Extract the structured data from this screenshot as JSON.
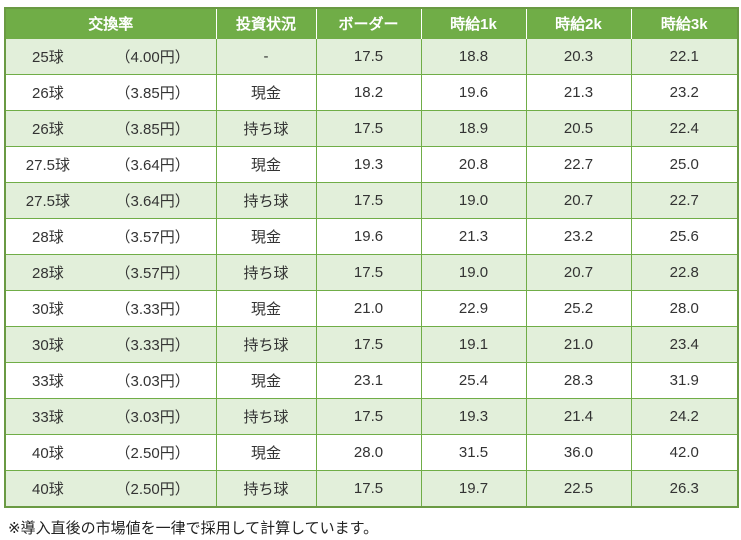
{
  "chart_data": {
    "type": "table",
    "columns": [
      "交換率",
      "投資状況",
      "ボーダー",
      "時給1k",
      "時給2k",
      "時給3k"
    ],
    "rows": [
      {
        "balls": "25球",
        "yen": "（4.00円）",
        "status": "-",
        "border": "17.5",
        "wage1k": "18.8",
        "wage2k": "20.3",
        "wage3k": "22.1"
      },
      {
        "balls": "26球",
        "yen": "（3.85円）",
        "status": "現金",
        "border": "18.2",
        "wage1k": "19.6",
        "wage2k": "21.3",
        "wage3k": "23.2"
      },
      {
        "balls": "26球",
        "yen": "（3.85円）",
        "status": "持ち球",
        "border": "17.5",
        "wage1k": "18.9",
        "wage2k": "20.5",
        "wage3k": "22.4"
      },
      {
        "balls": "27.5球",
        "yen": "（3.64円）",
        "status": "現金",
        "border": "19.3",
        "wage1k": "20.8",
        "wage2k": "22.7",
        "wage3k": "25.0"
      },
      {
        "balls": "27.5球",
        "yen": "（3.64円）",
        "status": "持ち球",
        "border": "17.5",
        "wage1k": "19.0",
        "wage2k": "20.7",
        "wage3k": "22.7"
      },
      {
        "balls": "28球",
        "yen": "（3.57円）",
        "status": "現金",
        "border": "19.6",
        "wage1k": "21.3",
        "wage2k": "23.2",
        "wage3k": "25.6"
      },
      {
        "balls": "28球",
        "yen": "（3.57円）",
        "status": "持ち球",
        "border": "17.5",
        "wage1k": "19.0",
        "wage2k": "20.7",
        "wage3k": "22.8"
      },
      {
        "balls": "30球",
        "yen": "（3.33円）",
        "status": "現金",
        "border": "21.0",
        "wage1k": "22.9",
        "wage2k": "25.2",
        "wage3k": "28.0"
      },
      {
        "balls": "30球",
        "yen": "（3.33円）",
        "status": "持ち球",
        "border": "17.5",
        "wage1k": "19.1",
        "wage2k": "21.0",
        "wage3k": "23.4"
      },
      {
        "balls": "33球",
        "yen": "（3.03円）",
        "status": "現金",
        "border": "23.1",
        "wage1k": "25.4",
        "wage2k": "28.3",
        "wage3k": "31.9"
      },
      {
        "balls": "33球",
        "yen": "（3.03円）",
        "status": "持ち球",
        "border": "17.5",
        "wage1k": "19.3",
        "wage2k": "21.4",
        "wage3k": "24.2"
      },
      {
        "balls": "40球",
        "yen": "（2.50円）",
        "status": "現金",
        "border": "28.0",
        "wage1k": "31.5",
        "wage2k": "36.0",
        "wage3k": "42.0"
      },
      {
        "balls": "40球",
        "yen": "（2.50円）",
        "status": "持ち球",
        "border": "17.5",
        "wage1k": "19.7",
        "wage2k": "22.5",
        "wage3k": "26.3"
      }
    ],
    "layout": {
      "banded_rows": true,
      "band_color": "#E2EFDA",
      "header_bg": "#70AD47",
      "header_text_color": "#FFFFFF",
      "grid_color": "#70AD47"
    }
  },
  "footnote": "※導入直後の市場値を一律で採用して計算しています。"
}
